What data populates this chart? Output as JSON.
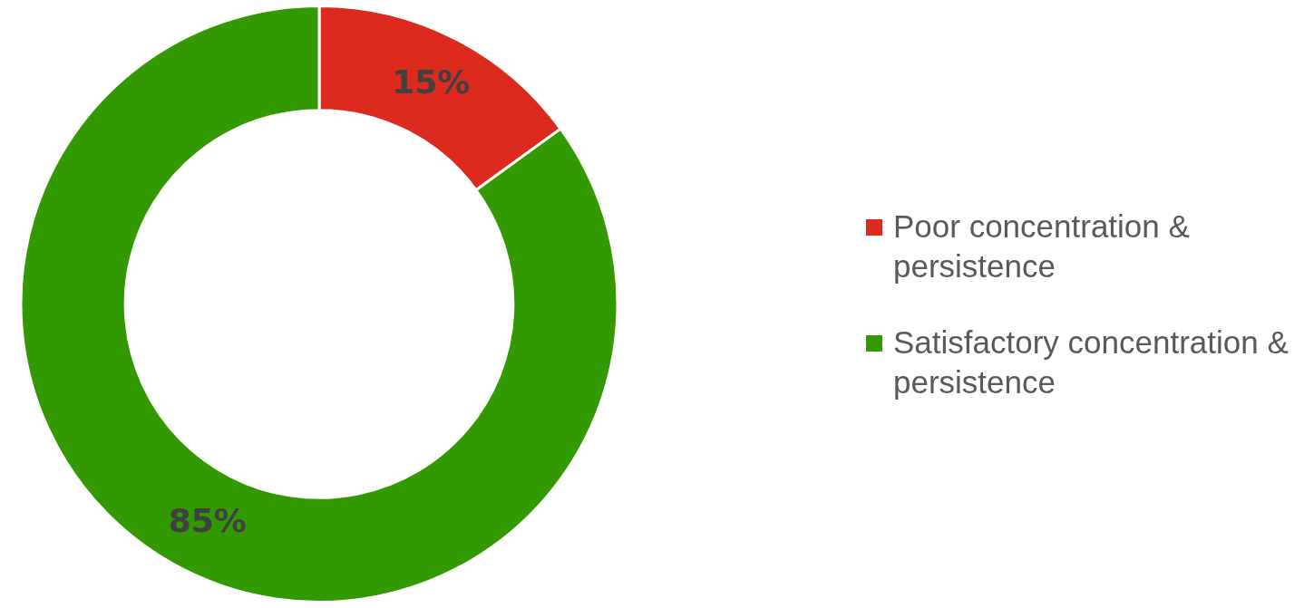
{
  "chart_data": {
    "type": "donut",
    "categories": [
      "Poor concentration & persistence",
      "Satisfactory concentration & persistence"
    ],
    "values": [
      15,
      85
    ],
    "colors": [
      "#dc2a1e",
      "#339900"
    ],
    "value_labels": [
      "15%",
      "85%"
    ],
    "legend": "right"
  }
}
